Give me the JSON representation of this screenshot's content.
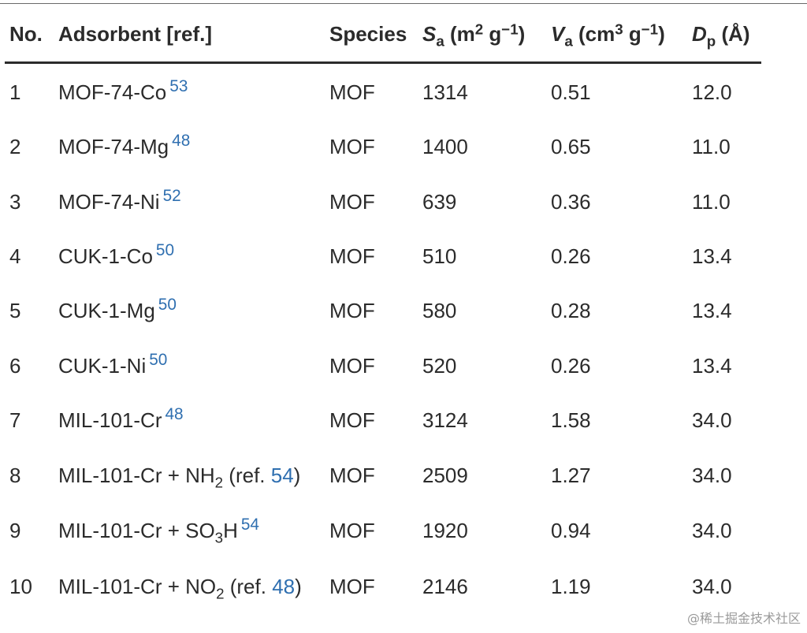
{
  "header": {
    "no": "No.",
    "adsorbent": "Adsorbent [ref.]",
    "species": "Species",
    "sa_sym": "S",
    "sa_sub": "a",
    "sa_unit_pre": " (m",
    "sa_unit_sup1": "2",
    "sa_unit_mid": " g",
    "sa_unit_sup2": "−1",
    "sa_unit_post": ")",
    "va_sym": "V",
    "va_sub": "a",
    "va_unit_pre": " (cm",
    "va_unit_sup1": "3",
    "va_unit_mid": " g",
    "va_unit_sup2": "−1",
    "va_unit_post": ")",
    "dp_sym": "D",
    "dp_sub": "p",
    "dp_unit": " (Å)"
  },
  "rows": [
    {
      "no": "1",
      "name": "MOF-74-Co",
      "ref": "53",
      "species": "MOF",
      "sa": "1314",
      "va": "0.51",
      "dp": "12.0"
    },
    {
      "no": "2",
      "name": "MOF-74-Mg",
      "ref": "48",
      "species": "MOF",
      "sa": "1400",
      "va": "0.65",
      "dp": "11.0"
    },
    {
      "no": "3",
      "name": "MOF-74-Ni",
      "ref": "52",
      "species": "MOF",
      "sa": "639",
      "va": "0.36",
      "dp": "11.0"
    },
    {
      "no": "4",
      "name": "CUK-1-Co",
      "ref": "50",
      "species": "MOF",
      "sa": "510",
      "va": "0.26",
      "dp": "13.4"
    },
    {
      "no": "5",
      "name": "CUK-1-Mg",
      "ref": "50",
      "species": "MOF",
      "sa": "580",
      "va": "0.28",
      "dp": "13.4"
    },
    {
      "no": "6",
      "name": "CUK-1-Ni",
      "ref": "50",
      "species": "MOF",
      "sa": "520",
      "va": "0.26",
      "dp": "13.4"
    },
    {
      "no": "7",
      "name": "MIL-101-Cr",
      "ref": "48",
      "species": "MOF",
      "sa": "3124",
      "va": "1.58",
      "dp": "34.0"
    },
    {
      "no": "8",
      "name_pre": "MIL-101-Cr + NH",
      "name_sub": "2",
      "name_post": " (ref. ",
      "ref": "54",
      "name_end": ")",
      "species": "MOF",
      "sa": "2509",
      "va": "1.27",
      "dp": "34.0"
    },
    {
      "no": "9",
      "name_pre": "MIL-101-Cr + SO",
      "name_sub": "3",
      "name_post": "H",
      "ref": "54",
      "species": "MOF",
      "sa": "1920",
      "va": "0.94",
      "dp": "34.0"
    },
    {
      "no": "10",
      "name_pre": "MIL-101-Cr + NO",
      "name_sub": "2",
      "name_post": " (ref. ",
      "ref": "48",
      "name_end": ")",
      "species": "MOF",
      "sa": "2146",
      "va": "1.19",
      "dp": "34.0"
    }
  ],
  "watermark": "@稀土掘金技术社区"
}
